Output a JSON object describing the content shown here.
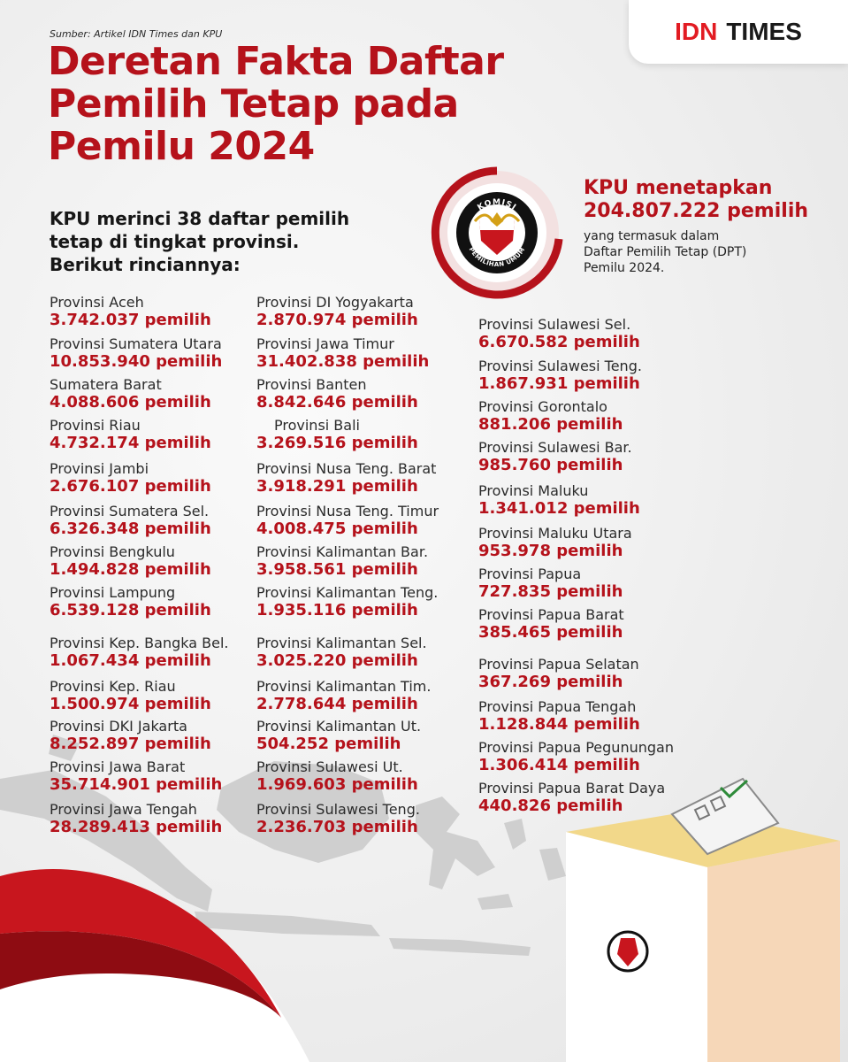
{
  "source": "Sumber: Artikel IDN Times dan KPU",
  "title_lines": [
    "Deretan Fakta Daftar",
    "Pemilih Tetap pada",
    "Pemilu 2024"
  ],
  "brand": {
    "idn": "IDN",
    "times": "TIMES"
  },
  "intro_lines": [
    "KPU merinci 38 daftar pemilih",
    "tetap di tingkat provinsi.",
    "Berikut rinciannya:"
  ],
  "highlight": {
    "label": "KPU menetapkan",
    "number": "204.807.222 pemilih",
    "desc_lines": [
      "yang termasuk dalam",
      "Daftar Pemilih Tetap (DPT)",
      "Pemilu 2024."
    ]
  },
  "logo": {
    "top": "KOMISI",
    "bottom": "PEMILIHAN UMUM"
  },
  "colors": {
    "accent": "#b5121b",
    "brand_red": "#e21b22"
  },
  "columns": [
    [
      {
        "name": "Provinsi Aceh",
        "count": "3.742.037 pemilih"
      },
      {
        "name": "Provinsi Sumatera Utara",
        "count": "10.853.940 pemilih"
      },
      {
        "name": "Sumatera Barat",
        "count": "4.088.606 pemilih"
      },
      {
        "name": "Provinsi Riau",
        "count": "4.732.174 pemilih"
      },
      {
        "name": "Provinsi Jambi",
        "count": "2.676.107 pemilih"
      },
      {
        "name": "Provinsi Sumatera Sel.",
        "count": "6.326.348 pemilih"
      },
      {
        "name": "Provinsi Bengkulu",
        "count": "1.494.828 pemilih"
      },
      {
        "name": "Provinsi Lampung",
        "count": "6.539.128 pemilih"
      },
      {
        "name": "Provinsi Kep. Bangka Bel.",
        "count": "1.067.434 pemilih"
      },
      {
        "name": "Provinsi Kep. Riau",
        "count": "1.500.974 pemilih"
      },
      {
        "name": "Provinsi DKI Jakarta",
        "count": "8.252.897 pemilih"
      },
      {
        "name": "Provinsi Jawa Barat",
        "count": "35.714.901 pemilih"
      },
      {
        "name": "Provinsi Jawa Tengah",
        "count": "28.289.413 pemilih"
      }
    ],
    [
      {
        "name": "Provinsi DI Yogyakarta",
        "count": "2.870.974 pemilih"
      },
      {
        "name": "Provinsi Jawa Timur",
        "count": "31.402.838 pemilih"
      },
      {
        "name": "Provinsi Banten",
        "count": "8.842.646 pemilih"
      },
      {
        "name": "Provinsi Bali",
        "count": "3.269.516 pemilih"
      },
      {
        "name": "Provinsi Nusa Teng. Barat",
        "count": "3.918.291 pemilih"
      },
      {
        "name": "Provinsi Nusa Teng. Timur",
        "count": "4.008.475 pemilih"
      },
      {
        "name": "Provinsi Kalimantan Bar.",
        "count": "3.958.561 pemilih"
      },
      {
        "name": "Provinsi Kalimantan Teng.",
        "count": "1.935.116 pemilih"
      },
      {
        "name": "Provinsi Kalimantan Sel.",
        "count": "3.025.220 pemilih"
      },
      {
        "name": "Provinsi Kalimantan Tim.",
        "count": "2.778.644 pemilih"
      },
      {
        "name": "Provinsi Kalimantan Ut.",
        "count": "504.252 pemilih"
      },
      {
        "name": "Provinsi Sulawesi Ut.",
        "count": "1.969.603 pemilih"
      },
      {
        "name": "Provinsi Sulawesi Teng.",
        "count": "2.236.703 pemilih"
      }
    ],
    [
      {
        "name": "Provinsi Sulawesi Sel.",
        "count": "6.670.582 pemilih"
      },
      {
        "name": "Provinsi Sulawesi Teng.",
        "count": "1.867.931 pemilih"
      },
      {
        "name": "Provinsi Gorontalo",
        "count": "881.206 pemilih"
      },
      {
        "name": "Provinsi Sulawesi Bar.",
        "count": "985.760 pemilih"
      },
      {
        "name": "Provinsi Maluku",
        "count": "1.341.012 pemilih"
      },
      {
        "name": "Provinsi Maluku Utara",
        "count": "953.978 pemilih"
      },
      {
        "name": "Provinsi Papua",
        "count": "727.835 pemilih"
      },
      {
        "name": "Provinsi Papua Barat",
        "count": "385.465 pemilih"
      },
      {
        "name": "Provinsi Papua Selatan",
        "count": "367.269 pemilih"
      },
      {
        "name": "Provinsi Papua Tengah",
        "count": "1.128.844 pemilih"
      },
      {
        "name": "Provinsi Papua Pegunungan",
        "count": "1.306.414 pemilih"
      },
      {
        "name": "Provinsi Papua Barat Daya",
        "count": "440.826 pemilih"
      }
    ]
  ]
}
